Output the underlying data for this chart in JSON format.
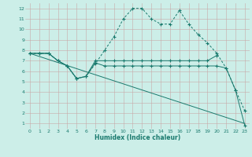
{
  "line1_x": [
    0,
    1,
    2,
    3,
    4,
    5,
    6,
    7,
    8,
    9,
    10,
    11,
    12,
    13,
    14,
    15,
    16,
    17,
    18,
    19,
    20,
    21,
    22,
    23
  ],
  "line1_y": [
    7.7,
    7.7,
    7.7,
    7.0,
    6.5,
    5.3,
    5.5,
    6.7,
    8.0,
    9.3,
    11.0,
    12.0,
    12.0,
    11.0,
    10.5,
    10.5,
    11.8,
    10.5,
    9.5,
    8.7,
    7.7,
    6.3,
    4.2,
    2.2
  ],
  "line2_x": [
    0,
    1,
    2,
    3,
    4,
    5,
    6,
    7,
    8,
    9,
    10,
    11,
    12,
    13,
    14,
    15,
    16,
    17,
    18,
    19,
    20
  ],
  "line2_y": [
    7.7,
    7.7,
    7.7,
    7.0,
    6.5,
    5.3,
    5.5,
    7.0,
    7.0,
    7.0,
    7.0,
    7.0,
    7.0,
    7.0,
    7.0,
    7.0,
    7.0,
    7.0,
    7.0,
    7.0,
    7.5
  ],
  "line3_x": [
    0,
    1,
    2,
    3,
    4,
    5,
    6,
    7,
    8,
    9,
    10,
    11,
    12,
    13,
    14,
    15,
    16,
    17,
    18,
    19,
    20,
    21,
    22,
    23
  ],
  "line3_y": [
    7.7,
    7.7,
    7.7,
    7.0,
    6.5,
    5.3,
    5.5,
    6.8,
    6.5,
    6.5,
    6.5,
    6.5,
    6.5,
    6.5,
    6.5,
    6.5,
    6.5,
    6.5,
    6.5,
    6.5,
    6.5,
    6.3,
    4.2,
    0.8
  ],
  "line4_x": [
    0,
    23
  ],
  "line4_y": [
    7.7,
    1.0
  ],
  "color": "#1a7a6e",
  "bg_color": "#cceee8",
  "grid_color": "#b8c8c4",
  "xlabel": "Humidex (Indice chaleur)",
  "xlim": [
    -0.5,
    23.5
  ],
  "ylim": [
    0.5,
    12.5
  ],
  "xticks": [
    0,
    1,
    2,
    3,
    4,
    5,
    6,
    7,
    8,
    9,
    10,
    11,
    12,
    13,
    14,
    15,
    16,
    17,
    18,
    19,
    20,
    21,
    22,
    23
  ],
  "yticks": [
    1,
    2,
    3,
    4,
    5,
    6,
    7,
    8,
    9,
    10,
    11,
    12
  ],
  "xlabel_fontsize": 5.5,
  "tick_fontsize": 4.5
}
